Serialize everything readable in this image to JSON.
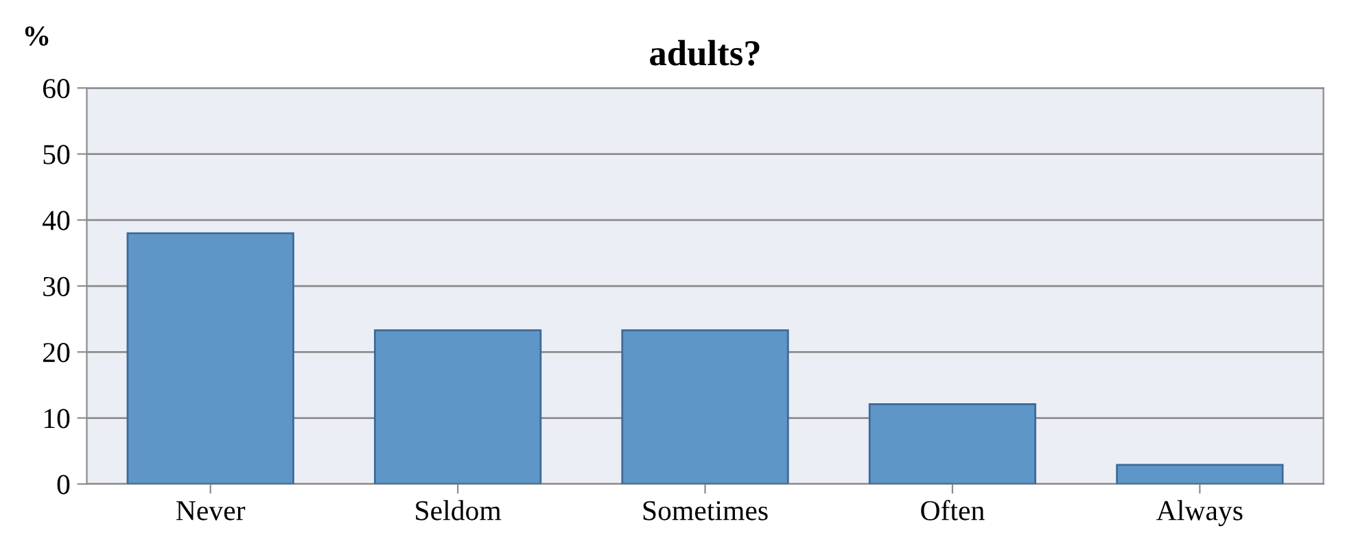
{
  "chart_data": {
    "type": "bar",
    "title": "adults?",
    "ylabel": "%",
    "categories": [
      "Never",
      "Seldom",
      "Sometimes",
      "Often",
      "Always"
    ],
    "values": [
      38,
      23.3,
      23.3,
      12.1,
      2.9
    ],
    "color": "#5f96c8",
    "ylim": [
      0,
      60
    ],
    "yticks": [
      0,
      10,
      20,
      30,
      40,
      50,
      60
    ],
    "grid": "y"
  }
}
